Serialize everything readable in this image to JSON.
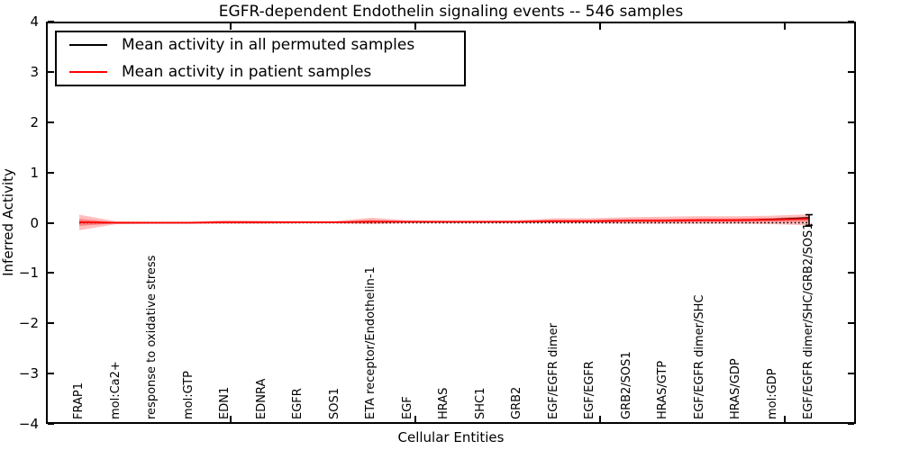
{
  "title": "EGFR-dependent Endothelin signaling events -- 546 samples",
  "legend": {
    "items": [
      {
        "label": "Mean activity in all permuted samples",
        "color": "#000000"
      },
      {
        "label": "Mean activity in patient samples",
        "color": "#ff0000"
      }
    ]
  },
  "axes": {
    "ylabel": "Inferred Activity",
    "xlabel": "Cellular Entities",
    "yticks": [
      {
        "label": "4",
        "value": 4
      },
      {
        "label": "3",
        "value": 3
      },
      {
        "label": "2",
        "value": 2
      },
      {
        "label": "1",
        "value": 1
      },
      {
        "label": "0",
        "value": 0
      },
      {
        "label": "−1",
        "value": -1
      },
      {
        "label": "−2",
        "value": -2
      },
      {
        "label": "−3",
        "value": -3
      },
      {
        "label": "−4",
        "value": -4
      }
    ]
  },
  "chart_data": {
    "type": "line",
    "title": "EGFR-dependent Endothelin signaling events -- 546 samples",
    "xlabel": "Cellular Entities",
    "ylabel": "Inferred Activity",
    "ylim": [
      -4,
      4
    ],
    "grid": false,
    "legend_position": "upper left",
    "categories": [
      "FRAP1",
      "mol:Ca2+",
      "response to oxidative stress",
      "mol:GTP",
      "EDN1",
      "EDNRA",
      "EGFR",
      "SOS1",
      "ETA receptor/Endothelin-1",
      "EGF",
      "HRAS",
      "SHC1",
      "GRB2",
      "EGF/EGFR dimer",
      "EGF/EGFR",
      "GRB2/SOS1",
      "HRAS/GTP",
      "EGF/EGFR dimer/SHC",
      "HRAS/GDP",
      "mol:GDP",
      "EGF/EGFR dimer/SHC/GRB2/SOS1"
    ],
    "series": [
      {
        "name": "Mean activity in all permuted samples",
        "color": "#000000",
        "width": 1.3,
        "values": [
          0.01,
          0.0,
          0.0,
          0.0,
          0.01,
          0.01,
          0.01,
          0.01,
          0.02,
          0.02,
          0.02,
          0.02,
          0.02,
          0.03,
          0.03,
          0.04,
          0.04,
          0.05,
          0.05,
          0.07,
          0.1
        ]
      },
      {
        "name": "Mean activity in patient samples",
        "color": "#ff0000",
        "width": 1.8,
        "values": [
          0.01,
          0.0,
          0.0,
          0.0,
          0.01,
          0.01,
          0.01,
          0.01,
          0.02,
          0.02,
          0.02,
          0.02,
          0.02,
          0.03,
          0.03,
          0.04,
          0.04,
          0.05,
          0.05,
          0.06,
          0.08
        ]
      }
    ],
    "band": {
      "name": "patient activity spread",
      "color": "#ff0000",
      "outer_opacity": 0.25,
      "inner_opacity": 0.32,
      "upper": [
        0.16,
        0.03,
        0.02,
        0.02,
        0.05,
        0.04,
        0.03,
        0.03,
        0.1,
        0.05,
        0.04,
        0.04,
        0.05,
        0.09,
        0.09,
        0.11,
        0.12,
        0.13,
        0.13,
        0.14,
        0.17
      ],
      "lower": [
        -0.15,
        -0.03,
        -0.02,
        -0.02,
        -0.02,
        -0.02,
        -0.01,
        -0.01,
        -0.03,
        -0.01,
        -0.01,
        -0.01,
        -0.01,
        -0.01,
        -0.01,
        -0.02,
        -0.02,
        -0.02,
        -0.02,
        -0.03,
        -0.05
      ]
    },
    "zero_line": {
      "value": 0,
      "style": "dotted",
      "color": "#000000"
    },
    "error_bar": {
      "index": 20,
      "upper": 0.16,
      "lower": -0.05,
      "color": "#000000"
    }
  }
}
